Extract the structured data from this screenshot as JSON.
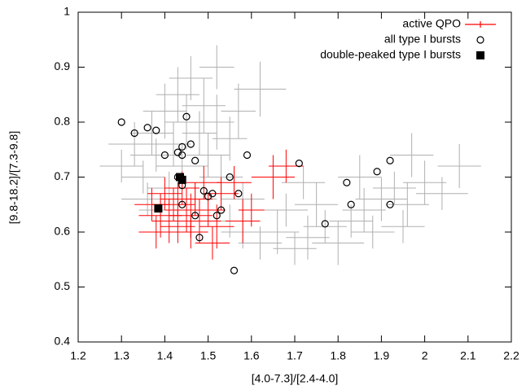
{
  "chart_data": {
    "type": "scatter",
    "x_label": "[4.0-7.3]/[2.4-4.0]",
    "y_label": "[9.8-18.2]/[7.3-9.8]",
    "xlim": [
      1.2,
      2.2
    ],
    "ylim": [
      0.4,
      1
    ],
    "xticks": [
      1.2,
      1.3,
      1.4,
      1.5,
      1.6,
      1.7,
      1.8,
      1.9,
      2,
      2.1,
      2.2
    ],
    "yticks": [
      0.4,
      0.5,
      0.6,
      0.7,
      0.8,
      0.9,
      1
    ],
    "legend": "top-right",
    "series": [
      {
        "color": "#b0b0b0",
        "marker": "errorbar",
        "x": [
          1.3,
          1.33,
          1.35,
          1.37,
          1.38,
          1.4,
          1.41,
          1.42,
          1.43,
          1.44,
          1.45,
          1.46,
          1.47,
          1.48,
          1.49,
          1.5,
          1.52,
          1.53,
          1.55,
          1.57,
          1.39,
          1.36,
          1.55,
          1.58,
          1.62,
          1.66,
          1.7,
          1.73,
          1.77,
          1.8,
          1.83,
          1.86,
          1.88,
          1.9,
          1.93,
          1.96,
          2.0,
          2.04,
          2.08,
          1.62,
          1.75,
          1.68,
          1.85,
          1.97,
          1.52,
          1.58,
          1.72,
          1.95
        ],
        "values": [
          0.72,
          0.76,
          0.7,
          0.78,
          0.74,
          0.82,
          0.68,
          0.76,
          0.85,
          0.72,
          0.8,
          0.88,
          0.66,
          0.78,
          0.83,
          0.74,
          0.8,
          0.7,
          0.77,
          0.82,
          0.64,
          0.66,
          0.62,
          0.6,
          0.58,
          0.6,
          0.57,
          0.59,
          0.61,
          0.58,
          0.62,
          0.64,
          0.6,
          0.66,
          0.68,
          0.65,
          0.69,
          0.67,
          0.72,
          0.86,
          0.65,
          0.64,
          0.7,
          0.74,
          0.9,
          0.66,
          0.69,
          0.61
        ],
        "xerr": [
          0.05,
          0.06,
          0.05,
          0.05,
          0.06,
          0.05,
          0.05,
          0.04,
          0.05,
          0.06,
          0.05,
          0.05,
          0.05,
          0.04,
          0.05,
          0.05,
          0.04,
          0.05,
          0.04,
          0.04,
          0.05,
          0.06,
          0.05,
          0.05,
          0.05,
          0.05,
          0.05,
          0.05,
          0.05,
          0.06,
          0.05,
          0.05,
          0.05,
          0.06,
          0.05,
          0.05,
          0.05,
          0.06,
          0.05,
          0.06,
          0.05,
          0.05,
          0.05,
          0.05,
          0.04,
          0.05,
          0.05,
          0.05
        ],
        "yerr": [
          0.03,
          0.04,
          0.03,
          0.04,
          0.03,
          0.05,
          0.03,
          0.04,
          0.05,
          0.04,
          0.05,
          0.04,
          0.03,
          0.04,
          0.05,
          0.04,
          0.05,
          0.04,
          0.04,
          0.05,
          0.03,
          0.03,
          0.03,
          0.03,
          0.03,
          0.04,
          0.03,
          0.04,
          0.03,
          0.04,
          0.03,
          0.04,
          0.03,
          0.04,
          0.03,
          0.04,
          0.04,
          0.03,
          0.04,
          0.05,
          0.04,
          0.03,
          0.04,
          0.04,
          0.04,
          0.03,
          0.03,
          0.03
        ]
      },
      {
        "name": "active QPO",
        "color": "#ff0000",
        "marker": "errorbar",
        "x": [
          1.37,
          1.39,
          1.4,
          1.41,
          1.42,
          1.43,
          1.44,
          1.45,
          1.46,
          1.47,
          1.48,
          1.49,
          1.5,
          1.52,
          1.53,
          1.56,
          1.58,
          1.6,
          1.65,
          1.68,
          1.43,
          1.46,
          1.38,
          1.51
        ],
        "values": [
          0.65,
          0.63,
          0.67,
          0.62,
          0.65,
          0.61,
          0.68,
          0.64,
          0.6,
          0.66,
          0.62,
          0.69,
          0.64,
          0.61,
          0.67,
          0.69,
          0.62,
          0.64,
          0.7,
          0.72,
          0.66,
          0.63,
          0.6,
          0.58
        ],
        "xerr": [
          0.04,
          0.05,
          0.04,
          0.04,
          0.05,
          0.04,
          0.04,
          0.05,
          0.04,
          0.04,
          0.05,
          0.04,
          0.04,
          0.04,
          0.04,
          0.04,
          0.04,
          0.03,
          0.05,
          0.04,
          0.04,
          0.05,
          0.04,
          0.04
        ],
        "yerr": [
          0.03,
          0.04,
          0.03,
          0.04,
          0.03,
          0.03,
          0.03,
          0.04,
          0.03,
          0.03,
          0.04,
          0.03,
          0.03,
          0.04,
          0.03,
          0.03,
          0.04,
          0.03,
          0.04,
          0.03,
          0.03,
          0.04,
          0.03,
          0.03
        ]
      },
      {
        "name": "all type I bursts",
        "color": "#000000",
        "marker": "circle",
        "x": [
          1.3,
          1.33,
          1.36,
          1.38,
          1.45,
          1.4,
          1.43,
          1.44,
          1.46,
          1.44,
          1.47,
          1.59,
          1.71,
          1.92,
          1.89,
          1.43,
          1.44,
          1.55,
          1.57,
          1.49,
          1.5,
          1.51,
          1.82,
          1.83,
          1.92,
          1.44,
          1.47,
          1.53,
          1.52,
          1.48,
          1.77,
          1.56
        ],
        "values": [
          0.8,
          0.78,
          0.79,
          0.785,
          0.81,
          0.74,
          0.745,
          0.755,
          0.76,
          0.74,
          0.73,
          0.74,
          0.725,
          0.73,
          0.71,
          0.7,
          0.685,
          0.7,
          0.67,
          0.675,
          0.665,
          0.67,
          0.69,
          0.65,
          0.65,
          0.65,
          0.63,
          0.64,
          0.63,
          0.59,
          0.615,
          0.53
        ]
      },
      {
        "name": "double-peaked type I bursts",
        "color": "#000000",
        "marker": "square",
        "x": [
          1.385,
          1.435,
          1.44
        ],
        "values": [
          0.643,
          0.7,
          0.695
        ]
      }
    ]
  }
}
